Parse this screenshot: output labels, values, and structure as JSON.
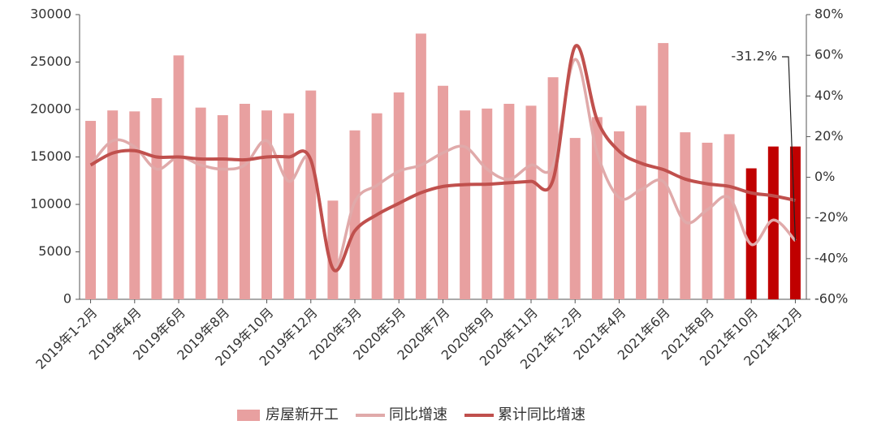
{
  "chart_data": {
    "type": "bar_line",
    "categories": [
      "2019年1-2月",
      null,
      "2019年4月",
      null,
      "2019年6月",
      null,
      "2019年8月",
      null,
      "2019年10月",
      null,
      "2019年12月",
      null,
      "2020年3月",
      null,
      "2020年5月",
      null,
      "2020年7月",
      null,
      "2020年9月",
      null,
      "2020年11月",
      null,
      "2021年1-2月",
      null,
      "2021年4月",
      null,
      "2021年6月",
      null,
      "2021年8月",
      null,
      "2021年10月",
      null,
      "2021年12月"
    ],
    "series": [
      {
        "name": "房屋新开工",
        "type": "bar",
        "color": "#e8a0a0",
        "colors": [
          "#e8a0a0",
          "#e8a0a0",
          "#e8a0a0",
          "#e8a0a0",
          "#e8a0a0",
          "#e8a0a0",
          "#e8a0a0",
          "#e8a0a0",
          "#e8a0a0",
          "#e8a0a0",
          "#e8a0a0",
          "#e8a0a0",
          "#e8a0a0",
          "#e8a0a0",
          "#e8a0a0",
          "#e8a0a0",
          "#e8a0a0",
          "#e8a0a0",
          "#e8a0a0",
          "#e8a0a0",
          "#e8a0a0",
          "#e8a0a0",
          "#e8a0a0",
          "#e8a0a0",
          "#e8a0a0",
          "#e8a0a0",
          "#e8a0a0",
          "#e8a0a0",
          "#e8a0a0",
          "#e8a0a0",
          "#c00000",
          "#c00000",
          "#c00000"
        ],
        "values": [
          18800,
          19900,
          19800,
          21200,
          25700,
          20200,
          19400,
          20600,
          19900,
          19600,
          22000,
          10400,
          17800,
          19600,
          21800,
          28000,
          22500,
          19900,
          20100,
          20600,
          20400,
          23400,
          17000,
          19200,
          17700,
          20400,
          27000,
          17600,
          16500,
          17400,
          13800,
          16100,
          16100
        ]
      },
      {
        "name": "同比增速",
        "type": "line",
        "axis": "y2",
        "color": "#e0aaaa",
        "values": [
          6,
          18,
          15,
          4,
          10,
          6,
          4,
          6,
          18,
          -2,
          9,
          -45,
          -12,
          -4,
          3,
          6,
          12,
          15,
          4,
          -1,
          6,
          6,
          58,
          12,
          -10,
          -6,
          -2,
          -22,
          -16,
          -10,
          -33,
          -21,
          -31.2
        ]
      },
      {
        "name": "累计同比增速",
        "type": "line",
        "axis": "y2",
        "color": "#c0504d",
        "values": [
          6,
          11.9,
          13.1,
          10,
          10,
          9,
          9,
          8.6,
          10,
          10,
          8.5,
          -44.9,
          -26.3,
          -18.4,
          -12.8,
          -7.6,
          -4.5,
          -3.6,
          -3.4,
          -2.7,
          -2,
          -1.2,
          64.3,
          28.2,
          12.8,
          6.9,
          3.8,
          -0.9,
          -3.2,
          -4.5,
          -7.7,
          -9.1,
          -11.4
        ]
      }
    ],
    "annotation": "-31.2%",
    "ylim": [
      0,
      30000
    ],
    "yticks": [
      0,
      5000,
      10000,
      15000,
      20000,
      25000,
      30000
    ],
    "y2lim": [
      -60,
      80
    ],
    "y2ticks": [
      {
        "value": -60,
        "label": "-60%"
      },
      {
        "value": -40,
        "label": "-40%"
      },
      {
        "value": -20,
        "label": "-20%"
      },
      {
        "value": 0,
        "label": "0%"
      },
      {
        "value": 20,
        "label": "20%"
      },
      {
        "value": 40,
        "label": "40%"
      },
      {
        "value": 60,
        "label": "60%"
      },
      {
        "value": 80,
        "label": "80%"
      }
    ],
    "legend": "bottom"
  }
}
